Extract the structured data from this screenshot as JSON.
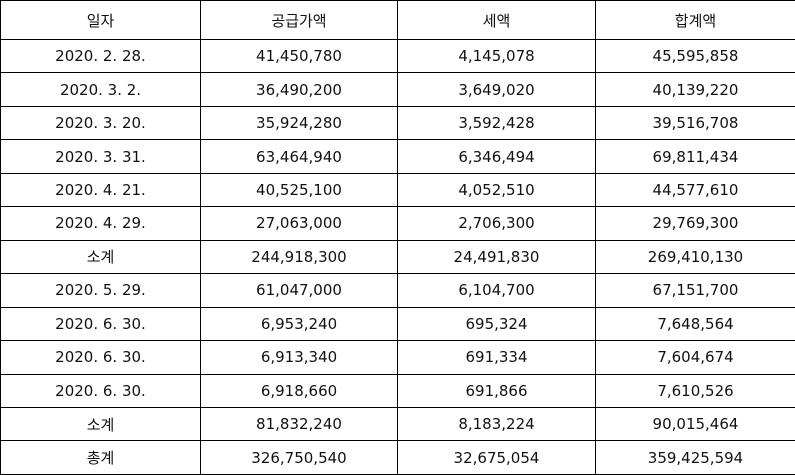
{
  "table": {
    "header": [
      "일자",
      "공급가액",
      "세액",
      "합계액"
    ],
    "rows": [
      [
        "2020. 2. 28.",
        "41,450,780",
        "4,145,078",
        "45,595,858"
      ],
      [
        "2020. 3. 2.",
        "36,490,200",
        "3,649,020",
        "40,139,220"
      ],
      [
        "2020. 3. 20.",
        "35,924,280",
        "3,592,428",
        "39,516,708"
      ],
      [
        "2020. 3. 31.",
        "63,464,940",
        "6,346,494",
        "69,811,434"
      ],
      [
        "2020. 4. 21.",
        "40,525,100",
        "4,052,510",
        "44,577,610"
      ],
      [
        "2020. 4. 29.",
        "27,063,000",
        "2,706,300",
        "29,769,300"
      ],
      [
        "소계",
        "244,918,300",
        "24,491,830",
        "269,410,130"
      ],
      [
        "2020. 5. 29.",
        "61,047,000",
        "6,104,700",
        "67,151,700"
      ],
      [
        "2020. 6. 30.",
        "6,953,240",
        "695,324",
        "7,648,564"
      ],
      [
        "2020. 6. 30.",
        "6,913,340",
        "691,334",
        "7,604,674"
      ],
      [
        "2020. 6. 30.",
        "6,918,660",
        "691,866",
        "7,610,526"
      ],
      [
        "소계",
        "81,832,240",
        "8,183,224",
        "90,015,464"
      ],
      [
        "총계",
        "326,750,540",
        "32,675,054",
        "359,425,594"
      ]
    ]
  }
}
